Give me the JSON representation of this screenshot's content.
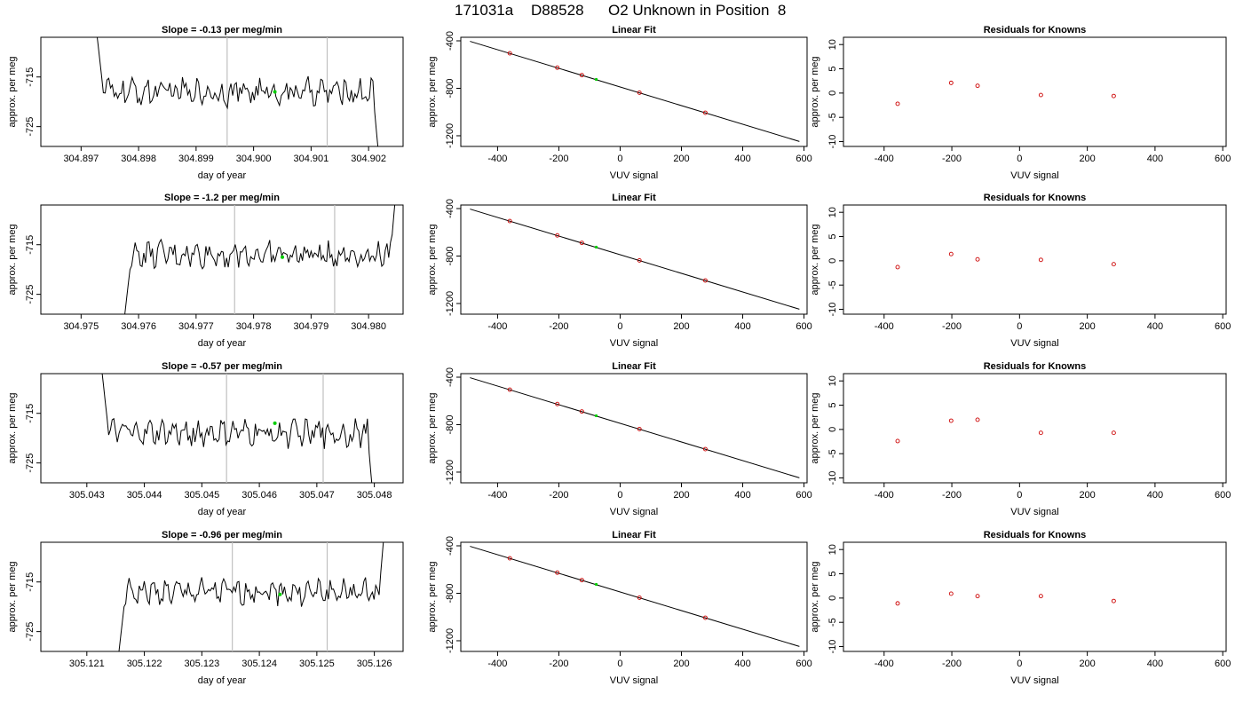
{
  "header": {
    "date": "171031a",
    "sample": "D88528",
    "description": "O2 Unknown in Position  8"
  },
  "colors": {
    "line": "#000000",
    "points": "#cc0000",
    "unknown_point": "#00cc00",
    "vertical_markers": "#c0c0c0"
  },
  "chart_data": [
    {
      "type": "line",
      "panel": "timeseries",
      "row": 1,
      "title": "Slope =  -0.13  per meg/min",
      "xlabel": "day of year",
      "ylabel": "approx. per meg",
      "xlim": [
        304.8963,
        304.9026
      ],
      "ylim": [
        -729,
        -707
      ],
      "x_ticks": [
        "304.897",
        "304.898",
        "304.899",
        "304.900",
        "304.901",
        "304.902"
      ],
      "y_ticks": [
        "-725",
        "-715"
      ],
      "vertical_lines": [
        304.89954,
        304.90128
      ],
      "start": 304.8972,
      "end": 304.9022,
      "noise_amplitude": 2.1,
      "base": -718,
      "green_point": [
        304.90037,
        -718
      ]
    },
    {
      "type": "scatter",
      "panel": "linear_fit",
      "row": 1,
      "title": "Linear Fit",
      "xlabel": "VUV signal",
      "ylabel": "approx. per meg",
      "xlim": [
        -520,
        610
      ],
      "ylim": [
        -1290,
        -370
      ],
      "x_ticks": [
        -400,
        -200,
        0,
        200,
        400,
        600
      ],
      "y_ticks": [
        -400,
        -800,
        -1200
      ],
      "line": {
        "x": [
          -490,
          585
        ],
        "y": [
          -404,
          -1248
        ]
      },
      "points": [
        [
          -360,
          -505
        ],
        [
          -205,
          -626
        ],
        [
          -125,
          -689
        ],
        [
          63,
          -837
        ],
        [
          278,
          -1006
        ]
      ],
      "unknown_point": [
        -78,
        -725
      ]
    },
    {
      "type": "scatter",
      "panel": "residuals",
      "row": 1,
      "title": "Residuals for Knowns",
      "xlabel": "VUV signal",
      "ylabel": "approx. per meg",
      "xlim": [
        -520,
        610
      ],
      "ylim": [
        -11,
        11.5
      ],
      "x_ticks": [
        -400,
        -200,
        0,
        200,
        400,
        600
      ],
      "y_ticks": [
        -10,
        -5,
        0,
        5,
        10
      ],
      "points": [
        [
          -360,
          -2.2
        ],
        [
          -202,
          2.1
        ],
        [
          -124,
          1.5
        ],
        [
          63,
          -0.4
        ],
        [
          278,
          -0.6
        ]
      ]
    },
    {
      "type": "line",
      "panel": "timeseries",
      "row": 2,
      "title": "Slope =  -1.2  per meg/min",
      "xlabel": "day of year",
      "ylabel": "approx. per meg",
      "xlim": [
        304.9743,
        304.9806
      ],
      "ylim": [
        -729,
        -707
      ],
      "x_ticks": [
        "304.975",
        "304.976",
        "304.977",
        "304.978",
        "304.979",
        "304.980"
      ],
      "y_ticks": [
        "-725",
        "-715"
      ],
      "vertical_lines": [
        304.97767,
        304.97941
      ],
      "start": 304.9757,
      "end": 304.9805,
      "noise_amplitude": 1.9,
      "base": -717,
      "green_point": [
        304.9785,
        -717.5
      ]
    },
    {
      "type": "scatter",
      "panel": "linear_fit",
      "row": 2,
      "title": "Linear Fit",
      "xlabel": "VUV signal",
      "ylabel": "approx. per meg",
      "xlim": [
        -520,
        610
      ],
      "ylim": [
        -1290,
        -370
      ],
      "x_ticks": [
        -400,
        -200,
        0,
        200,
        400,
        600
      ],
      "y_ticks": [
        -400,
        -800,
        -1200
      ],
      "line": {
        "x": [
          -490,
          585
        ],
        "y": [
          -404,
          -1248
        ]
      },
      "points": [
        [
          -360,
          -505
        ],
        [
          -205,
          -626
        ],
        [
          -125,
          -689
        ],
        [
          63,
          -837
        ],
        [
          278,
          -1006
        ]
      ],
      "unknown_point": [
        -78,
        -725
      ]
    },
    {
      "type": "scatter",
      "panel": "residuals",
      "row": 2,
      "title": "Residuals for Knowns",
      "xlabel": "VUV signal",
      "ylabel": "approx. per meg",
      "xlim": [
        -520,
        610
      ],
      "ylim": [
        -11,
        11.5
      ],
      "x_ticks": [
        -400,
        -200,
        0,
        200,
        400,
        600
      ],
      "y_ticks": [
        -10,
        -5,
        0,
        5,
        10
      ],
      "points": [
        [
          -360,
          -1.3
        ],
        [
          -202,
          1.4
        ],
        [
          -124,
          0.3
        ],
        [
          63,
          0.2
        ],
        [
          278,
          -0.7
        ]
      ]
    },
    {
      "type": "line",
      "panel": "timeseries",
      "row": 3,
      "title": "Slope =  -0.57  per meg/min",
      "xlabel": "day of year",
      "ylabel": "approx. per meg",
      "xlim": [
        305.0422,
        305.0485
      ],
      "ylim": [
        -729,
        -707
      ],
      "x_ticks": [
        "305.043",
        "305.044",
        "305.045",
        "305.046",
        "305.047",
        "305.048"
      ],
      "y_ticks": [
        "-725",
        "-715"
      ],
      "vertical_lines": [
        305.04543,
        305.04711
      ],
      "start": 305.0432,
      "end": 305.048,
      "noise_amplitude": 2.0,
      "base": -719,
      "green_point": [
        305.04627,
        -717
      ]
    },
    {
      "type": "scatter",
      "panel": "linear_fit",
      "row": 3,
      "title": "Linear Fit",
      "xlabel": "VUV signal",
      "ylabel": "approx. per meg",
      "xlim": [
        -520,
        610
      ],
      "ylim": [
        -1290,
        -370
      ],
      "x_ticks": [
        -400,
        -200,
        0,
        200,
        400,
        600
      ],
      "y_ticks": [
        -400,
        -800,
        -1200
      ],
      "line": {
        "x": [
          -490,
          585
        ],
        "y": [
          -404,
          -1248
        ]
      },
      "points": [
        [
          -360,
          -505
        ],
        [
          -205,
          -626
        ],
        [
          -125,
          -689
        ],
        [
          63,
          -837
        ],
        [
          278,
          -1006
        ]
      ],
      "unknown_point": [
        -78,
        -725
      ]
    },
    {
      "type": "scatter",
      "panel": "residuals",
      "row": 3,
      "title": "Residuals for Knowns",
      "xlabel": "VUV signal",
      "ylabel": "approx. per meg",
      "xlim": [
        -520,
        610
      ],
      "ylim": [
        -11,
        11.5
      ],
      "x_ticks": [
        -400,
        -200,
        0,
        200,
        400,
        600
      ],
      "y_ticks": [
        -10,
        -5,
        0,
        5,
        10
      ],
      "points": [
        [
          -360,
          -2.4
        ],
        [
          -202,
          1.8
        ],
        [
          -124,
          2.0
        ],
        [
          63,
          -0.7
        ],
        [
          278,
          -0.7
        ]
      ]
    },
    {
      "type": "line",
      "panel": "timeseries",
      "row": 4,
      "title": "Slope =  -0.96  per meg/min",
      "xlabel": "day of year",
      "ylabel": "approx. per meg",
      "xlim": [
        305.1202,
        305.1265
      ],
      "ylim": [
        -729,
        -707
      ],
      "x_ticks": [
        "305.121",
        "305.122",
        "305.123",
        "305.124",
        "305.125",
        "305.126"
      ],
      "y_ticks": [
        "-725",
        "-715"
      ],
      "vertical_lines": [
        305.12353,
        305.12518
      ],
      "start": 305.1215,
      "end": 305.1262,
      "noise_amplitude": 1.9,
      "base": -717,
      "green_point": [
        305.12436,
        -717.5
      ]
    },
    {
      "type": "scatter",
      "panel": "linear_fit",
      "row": 4,
      "title": "Linear Fit",
      "xlabel": "VUV signal",
      "ylabel": "approx. per meg",
      "xlim": [
        -520,
        610
      ],
      "ylim": [
        -1290,
        -370
      ],
      "x_ticks": [
        -400,
        -200,
        0,
        200,
        400,
        600
      ],
      "y_ticks": [
        -400,
        -800,
        -1200
      ],
      "line": {
        "x": [
          -490,
          585
        ],
        "y": [
          -404,
          -1248
        ]
      },
      "points": [
        [
          -360,
          -505
        ],
        [
          -205,
          -626
        ],
        [
          -125,
          -689
        ],
        [
          63,
          -837
        ],
        [
          278,
          -1006
        ]
      ],
      "unknown_point": [
        -78,
        -725
      ]
    },
    {
      "type": "scatter",
      "panel": "residuals",
      "row": 4,
      "title": "Residuals for Knowns",
      "xlabel": "VUV signal",
      "ylabel": "approx. per meg",
      "xlim": [
        -520,
        610
      ],
      "ylim": [
        -11,
        11.5
      ],
      "x_ticks": [
        -400,
        -200,
        0,
        200,
        400,
        600
      ],
      "y_ticks": [
        -10,
        -5,
        0,
        5,
        10
      ],
      "points": [
        [
          -360,
          -1.1
        ],
        [
          -202,
          0.9
        ],
        [
          -124,
          0.4
        ],
        [
          63,
          0.4
        ],
        [
          278,
          -0.6
        ]
      ]
    }
  ]
}
